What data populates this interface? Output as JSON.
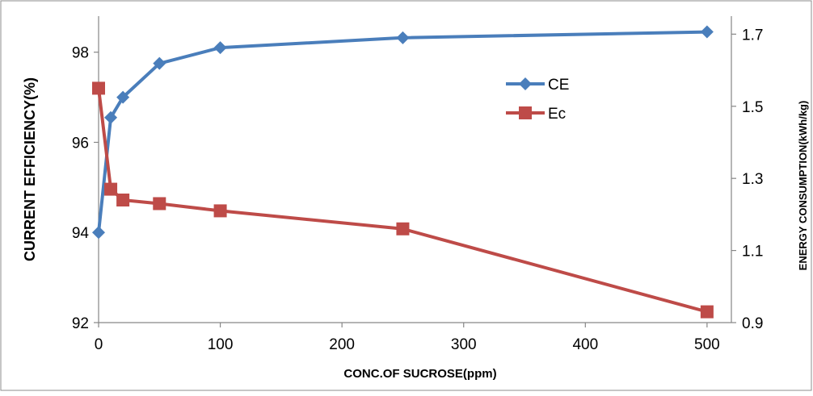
{
  "chart_data": {
    "type": "line",
    "xlabel": "CONC.OF SUCROSE(ppm)",
    "ylabel": "CURRENT EFFICIENCY(%)",
    "y2label": "ENERGY CONSUMPTION(kWh/kg)",
    "x": [
      0,
      10,
      20,
      50,
      100,
      250,
      500
    ],
    "xlim": [
      0,
      520
    ],
    "ylim": [
      92,
      98.8
    ],
    "y2lim": [
      0.9,
      1.75
    ],
    "x_ticks": [
      0,
      100,
      200,
      300,
      400,
      500
    ],
    "y_ticks": [
      92,
      94,
      96,
      98
    ],
    "y2_ticks": [
      0.9,
      1.1,
      1.3,
      1.5,
      1.7
    ],
    "y2_tick_labels": [
      "0.9",
      "1.1",
      "1.3",
      "1.5",
      "1.7"
    ],
    "grid": false,
    "legend_position": "top-right",
    "series": [
      {
        "name": "CE",
        "axis": "left",
        "color": "#4a7ebb",
        "marker": "diamond",
        "values": [
          94.0,
          96.55,
          97.0,
          97.75,
          98.1,
          98.32,
          98.45
        ]
      },
      {
        "name": "Ec",
        "axis": "right",
        "color": "#be4b48",
        "marker": "square",
        "values": [
          1.55,
          1.27,
          1.24,
          1.23,
          1.21,
          1.16,
          0.93
        ]
      }
    ]
  }
}
